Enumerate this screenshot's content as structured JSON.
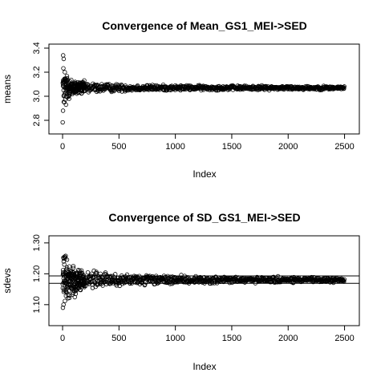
{
  "chart_data": [
    {
      "type": "scatter",
      "title": "Convergence of Mean_GS1_MEI->SED",
      "xlabel": "Index",
      "ylabel": "means",
      "xlim": [
        -50,
        2560
      ],
      "ylim": [
        2.72,
        3.4
      ],
      "xticks": [
        0,
        500,
        1000,
        1500,
        2000,
        2500
      ],
      "yticks": [
        2.8,
        3.0,
        3.2,
        3.4
      ],
      "xtick_labels": [
        "0",
        "500",
        "1000",
        "1500",
        "2000",
        "2500"
      ],
      "ytick_labels": [
        "2.8",
        "3.0",
        "3.2",
        "3.4"
      ],
      "n_points": 2500,
      "center": 3.07,
      "spread_profile": [
        [
          1,
          0.26
        ],
        [
          10,
          0.14
        ],
        [
          50,
          0.07
        ],
        [
          150,
          0.045
        ],
        [
          300,
          0.03
        ],
        [
          600,
          0.022
        ],
        [
          1000,
          0.017
        ],
        [
          2500,
          0.012
        ]
      ],
      "highlight_points": [
        [
          5,
          3.34
        ],
        [
          10,
          3.31
        ],
        [
          4,
          2.88
        ],
        [
          15,
          2.95
        ],
        [
          30,
          2.93
        ],
        [
          20,
          3.2
        ],
        [
          40,
          3.15
        ]
      ],
      "grid": false,
      "legend": "none"
    },
    {
      "type": "scatter",
      "title": "Convergence of SD_GS1_MEI->SED",
      "xlabel": "Index",
      "ylabel": "sdevs",
      "xlim": [
        -50,
        2560
      ],
      "ylim": [
        1.045,
        1.31
      ],
      "xticks": [
        0,
        500,
        1000,
        1500,
        2000,
        2500
      ],
      "yticks": [
        1.1,
        1.2,
        1.3
      ],
      "xtick_labels": [
        "0",
        "500",
        "1000",
        "1500",
        "2000",
        "2500"
      ],
      "ytick_labels": [
        "1.10",
        "1.20",
        "1.30"
      ],
      "n_points": 2500,
      "center": 1.18,
      "spread_profile": [
        [
          1,
          0.09
        ],
        [
          20,
          0.06
        ],
        [
          80,
          0.04
        ],
        [
          200,
          0.025
        ],
        [
          500,
          0.015
        ],
        [
          1000,
          0.01
        ],
        [
          2500,
          0.006
        ]
      ],
      "highlight_points": [
        [
          3,
          1.09
        ],
        [
          8,
          1.1
        ],
        [
          15,
          1.23
        ],
        [
          25,
          1.25
        ],
        [
          40,
          1.22
        ],
        [
          10,
          1.24
        ],
        [
          60,
          1.13
        ]
      ],
      "hlines": [
        1.193,
        1.169
      ],
      "grid": false,
      "legend": "none"
    }
  ]
}
